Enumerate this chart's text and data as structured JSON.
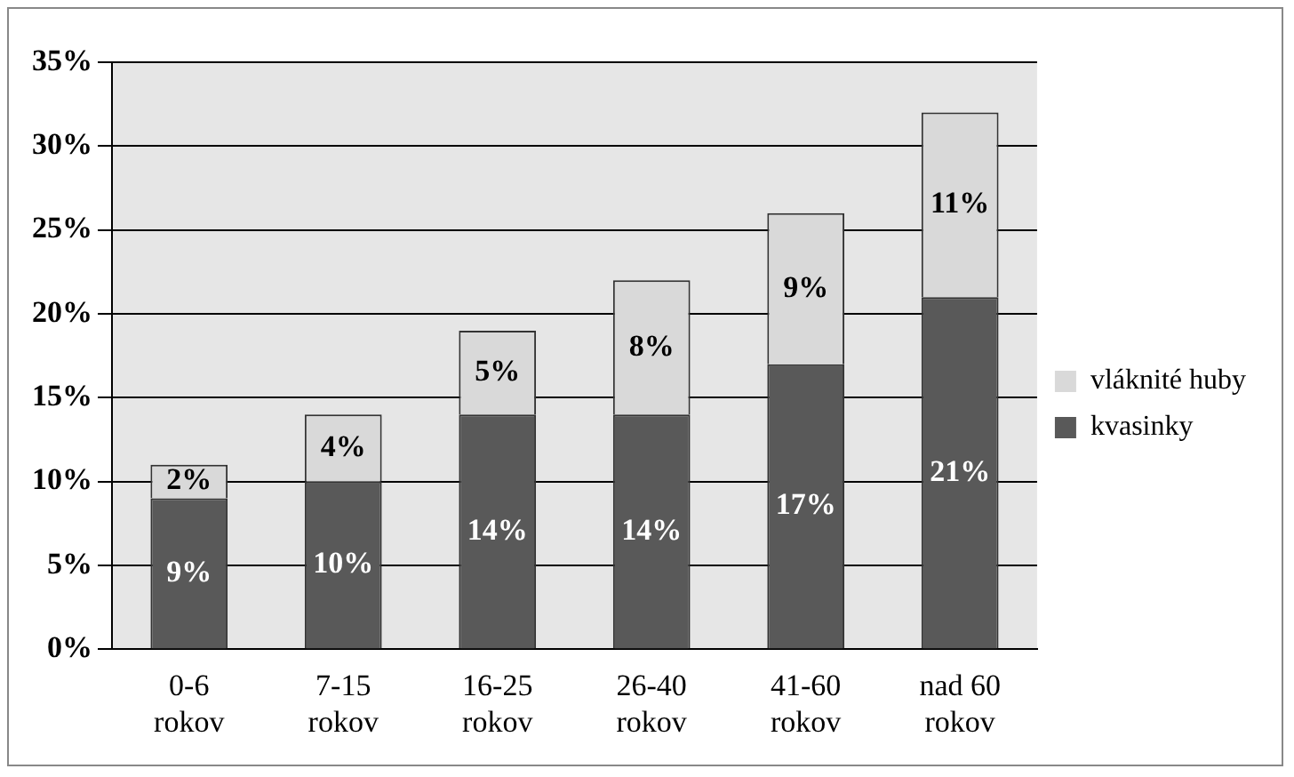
{
  "chart_data": {
    "type": "bar",
    "stacked": true,
    "categories": [
      "0-6 rokov",
      "7-15 rokov",
      "16-25 rokov",
      "26-40 rokov",
      "41-60 rokov",
      "nad 60 rokov"
    ],
    "series": [
      {
        "name": "kvasinky",
        "color": "#595959",
        "values": [
          9,
          10,
          14,
          14,
          17,
          21
        ],
        "value_labels": [
          "9%",
          "10%",
          "14%",
          "14%",
          "17%",
          "21%"
        ]
      },
      {
        "name": "vláknité huby",
        "color": "#d9d9d9",
        "values": [
          2,
          4,
          5,
          8,
          9,
          11
        ],
        "value_labels": [
          "2%",
          "4%",
          "5%",
          "8%",
          "9%",
          "11%"
        ]
      }
    ],
    "ylim": [
      0,
      35
    ],
    "yticks": [
      {
        "value": 0,
        "label": "0%"
      },
      {
        "value": 5,
        "label": "5%"
      },
      {
        "value": 10,
        "label": "10%"
      },
      {
        "value": 15,
        "label": "15%"
      },
      {
        "value": 20,
        "label": "20%"
      },
      {
        "value": 25,
        "label": "25%"
      },
      {
        "value": 30,
        "label": "30%"
      },
      {
        "value": 35,
        "label": "35%"
      }
    ],
    "grid": "y",
    "legend": "right"
  }
}
